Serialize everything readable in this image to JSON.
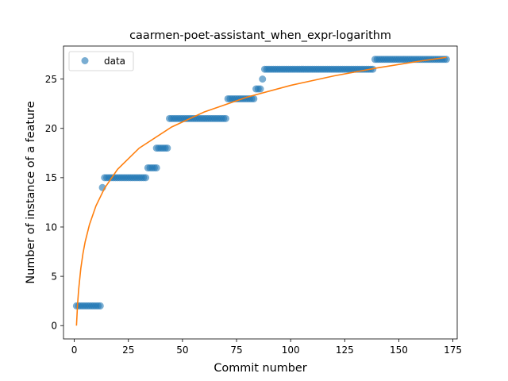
{
  "chart_data": {
    "type": "scatter",
    "title": "caarmen-poet-assistant_when_expr-logarithm",
    "xlabel": "Commit number",
    "ylabel": "Number of instance of a feature",
    "xlim": [
      -5,
      177
    ],
    "ylim": [
      -1.35,
      28.35
    ],
    "xticks": [
      0,
      25,
      50,
      75,
      100,
      125,
      150,
      175
    ],
    "yticks": [
      0,
      5,
      10,
      15,
      20,
      25
    ],
    "grid": false,
    "legend": {
      "placement": "top-left",
      "entries": [
        "data"
      ]
    },
    "colors": {
      "points": "#1f77b4",
      "fit": "#ff7f0e"
    },
    "series": [
      {
        "name": "data",
        "kind": "scatter",
        "segments": [
          {
            "x_from": 1,
            "x_to": 12,
            "y": 2
          },
          {
            "x_from": 13,
            "x_to": 13,
            "y": 14
          },
          {
            "x_from": 14,
            "x_to": 33,
            "y": 15
          },
          {
            "x_from": 34,
            "x_to": 38,
            "y": 16
          },
          {
            "x_from": 38,
            "x_to": 43,
            "y": 18
          },
          {
            "x_from": 44,
            "x_to": 70,
            "y": 21
          },
          {
            "x_from": 71,
            "x_to": 83,
            "y": 23
          },
          {
            "x_from": 84,
            "x_to": 86,
            "y": 24
          },
          {
            "x_from": 87,
            "x_to": 87,
            "y": 25
          },
          {
            "x_from": 88,
            "x_to": 138,
            "y": 26
          },
          {
            "x_from": 139,
            "x_to": 172,
            "y": 27
          }
        ]
      },
      {
        "kind": "line",
        "fit": "logarithm",
        "x": [
          1,
          1.5,
          2,
          3,
          4,
          5,
          7,
          10,
          14,
          20,
          30,
          45,
          60,
          80,
          100,
          120,
          140,
          160,
          172
        ],
        "y": [
          0,
          2.14,
          3.65,
          5.79,
          7.31,
          8.49,
          10.24,
          12.14,
          13.94,
          15.85,
          18.0,
          20.14,
          21.66,
          23.18,
          24.36,
          25.32,
          26.13,
          26.83,
          27.2
        ]
      }
    ]
  }
}
